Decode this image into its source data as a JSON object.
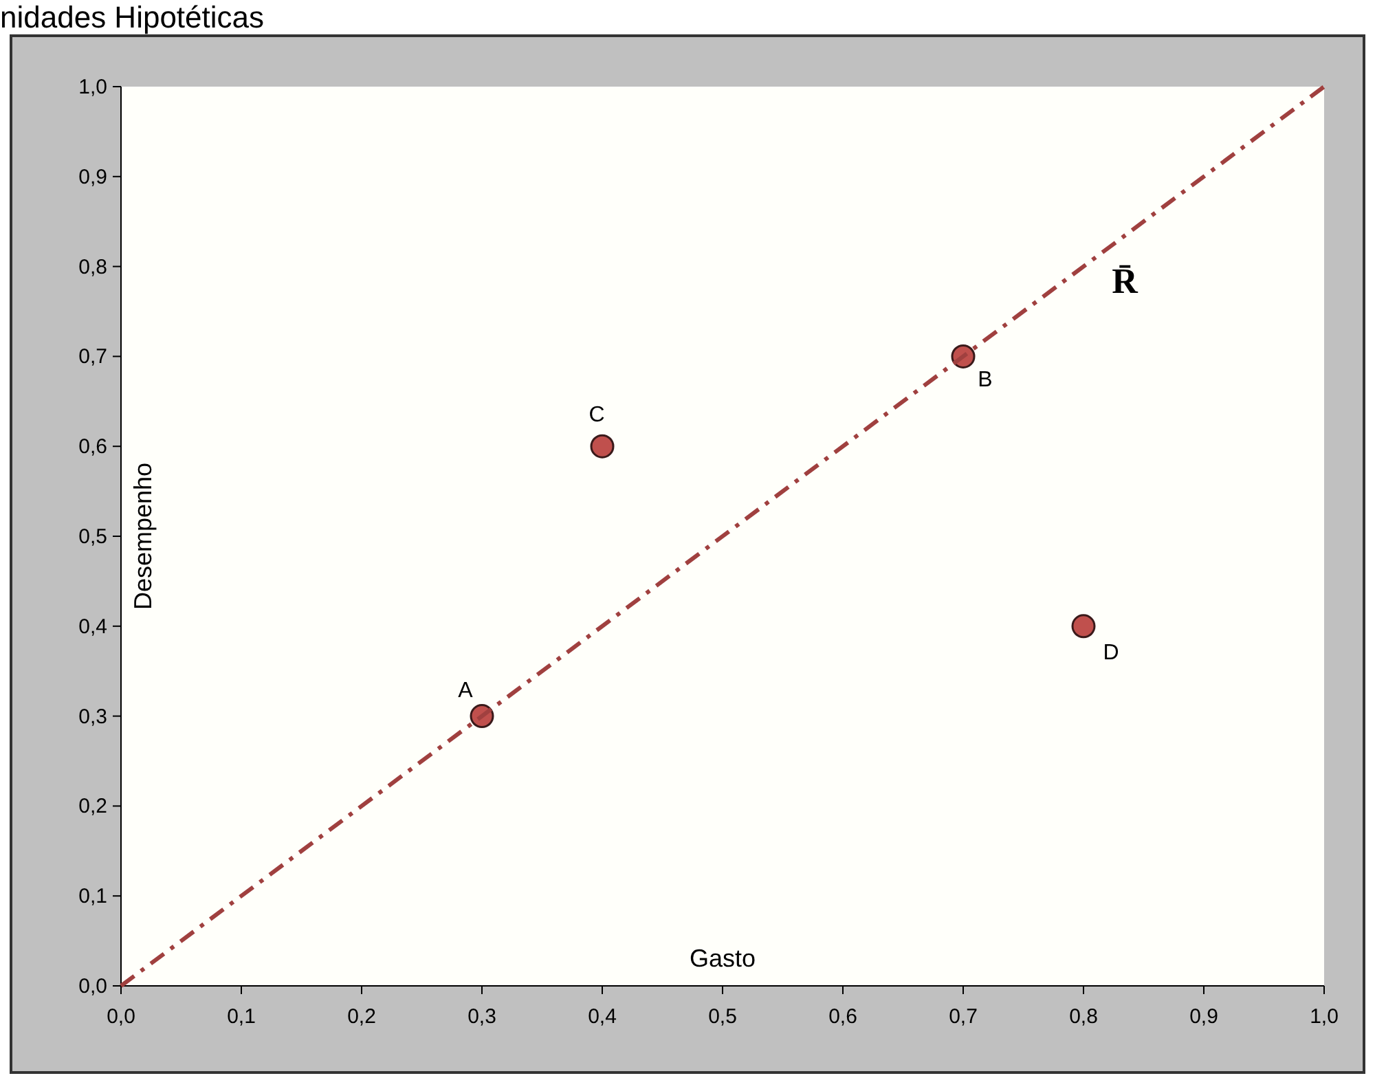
{
  "chart_data": {
    "type": "scatter",
    "title": "nidades Hipotéticas",
    "xlabel": "Gasto",
    "ylabel": "Desempenho",
    "xlim": [
      0,
      1
    ],
    "ylim": [
      0,
      1
    ],
    "xticks": [
      {
        "value": 0,
        "label": "0,0"
      },
      {
        "value": 0.1,
        "label": "0,1"
      },
      {
        "value": 0.2,
        "label": "0,2"
      },
      {
        "value": 0.3,
        "label": "0,3"
      },
      {
        "value": 0.4,
        "label": "0,4"
      },
      {
        "value": 0.5,
        "label": "0,5"
      },
      {
        "value": 0.6,
        "label": "0,6"
      },
      {
        "value": 0.7,
        "label": "0,7"
      },
      {
        "value": 0.8,
        "label": "0,8"
      },
      {
        "value": 0.9,
        "label": "0,9"
      },
      {
        "value": 1,
        "label": "1,0"
      }
    ],
    "yticks": [
      {
        "value": 0,
        "label": "0,0"
      },
      {
        "value": 0.1,
        "label": "0,1"
      },
      {
        "value": 0.2,
        "label": "0,2"
      },
      {
        "value": 0.3,
        "label": "0,3"
      },
      {
        "value": 0.4,
        "label": "0,4"
      },
      {
        "value": 0.5,
        "label": "0,5"
      },
      {
        "value": 0.6,
        "label": "0,6"
      },
      {
        "value": 0.7,
        "label": "0,7"
      },
      {
        "value": 0.8,
        "label": "0,8"
      },
      {
        "value": 0.9,
        "label": "0,9"
      },
      {
        "value": 1,
        "label": "1,0"
      }
    ],
    "grid": false,
    "series": [
      {
        "marker": "circle",
        "color": "#c0504d",
        "x": [
          0.3,
          0.7,
          0.4,
          0.8
        ],
        "values": [
          0.3,
          0.7,
          0.6,
          0.4
        ]
      },
      {
        "type": "line",
        "name": "R̄",
        "color": "#a0403f",
        "line_style": "dashed",
        "x": [
          0,
          1
        ],
        "values": [
          0,
          1
        ]
      }
    ],
    "annotations": [
      {
        "text": "A",
        "x": 0.3,
        "y": 0.3
      },
      {
        "text": "B",
        "x": 0.7,
        "y": 0.7
      },
      {
        "text": "C",
        "x": 0.4,
        "y": 0.6
      },
      {
        "text": "D",
        "x": 0.8,
        "y": 0.4
      }
    ]
  }
}
